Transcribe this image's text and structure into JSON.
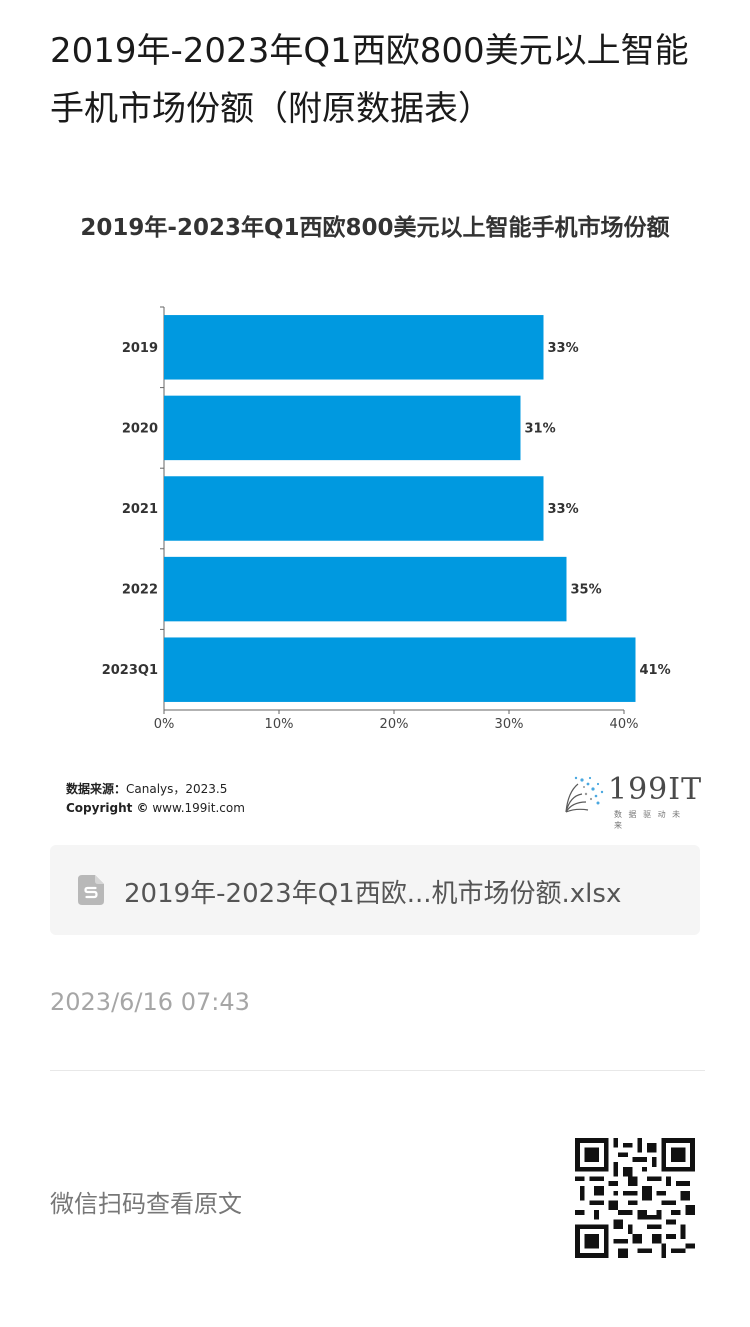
{
  "article": {
    "title": "2019年-2023年Q1西欧800美元以上智能手机市场份额（附原数据表）"
  },
  "chart": {
    "source_label": "数据来源：",
    "source_value": "Canalys，2023.5",
    "copyright_label": "Copyright ©",
    "copyright_value": " www.199it.com",
    "logo_text": "199IT",
    "logo_tagline": "数 据 驱 动 未 来"
  },
  "chart_data": {
    "type": "bar",
    "orientation": "horizontal",
    "title": "2019年-2023年Q1西欧800美元以上智能手机市场份额",
    "categories": [
      "2019",
      "2020",
      "2021",
      "2022",
      "2023Q1"
    ],
    "values": [
      33,
      31,
      33,
      35,
      41
    ],
    "data_labels": [
      "33%",
      "31%",
      "33%",
      "35%",
      "41%"
    ],
    "x_ticks": [
      "0%",
      "10%",
      "20%",
      "30%",
      "40%"
    ],
    "xlim": [
      0,
      40
    ],
    "xlabel": "",
    "ylabel": "",
    "grid": false,
    "bar_color": "#0099e0"
  },
  "attachment": {
    "file_name": "2019年-2023年Q1西欧...机市场份额.xlsx",
    "icon": "spreadsheet-file-icon"
  },
  "meta": {
    "timestamp": "2023/6/16 07:43"
  },
  "footer": {
    "scan_text": "微信扫码查看原文",
    "qr_icon": "qr-code-icon"
  },
  "colors": {
    "accent": "#0099e0",
    "file_icon": "#b8b8b8",
    "attachment_bg": "#f5f5f5"
  }
}
